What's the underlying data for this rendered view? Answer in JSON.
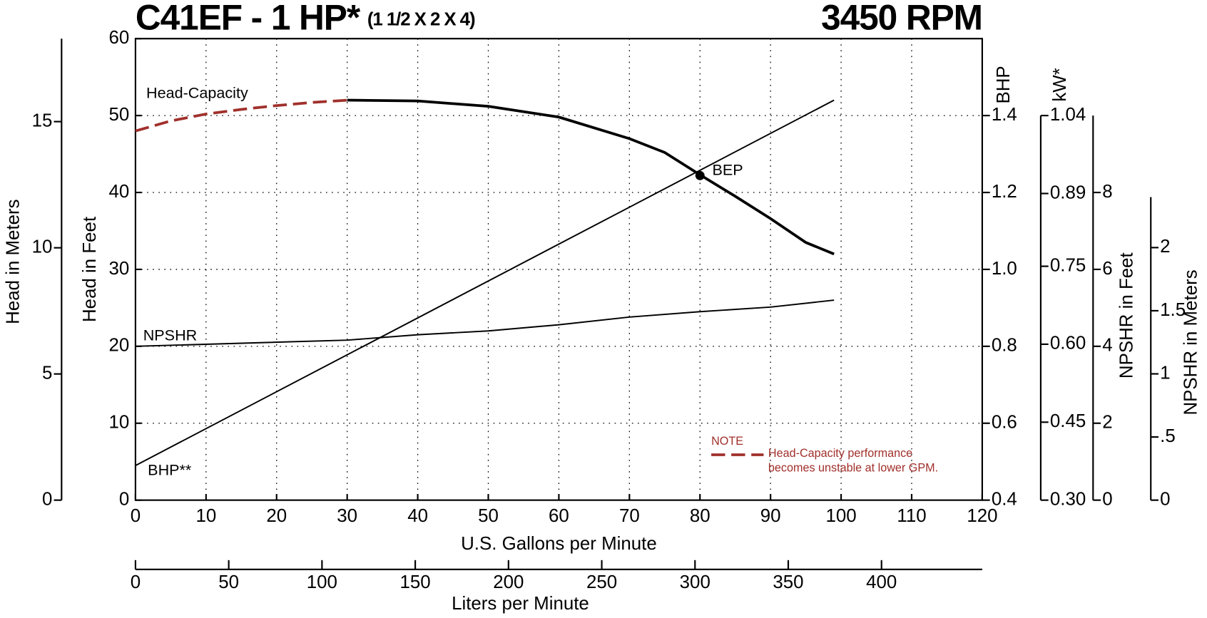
{
  "chart_data": {
    "type": "line",
    "title": "C41EF - 1 HP*",
    "subtitle": "(1 1/2 X 2 X 4)",
    "speed": "3450 RPM",
    "x_label": "U.S. Gallons per Minute",
    "y_label": "Head in Feet",
    "xlim": [
      0,
      120
    ],
    "xticks": [
      0,
      10,
      20,
      30,
      40,
      50,
      60,
      70,
      80,
      90,
      100,
      110,
      120
    ],
    "ylim": [
      0,
      60
    ],
    "yticks": [
      0,
      10,
      20,
      30,
      40,
      50,
      60
    ],
    "grid": true,
    "x2_label": "Liters per Minute",
    "x2lim": [
      0,
      454
    ],
    "x2ticks": [
      0,
      50,
      100,
      150,
      200,
      250,
      300,
      350,
      400
    ],
    "axes": {
      "meters": {
        "label": "Head in Meters",
        "lim": [
          0,
          18.288
        ],
        "ticks": [
          0,
          5,
          10,
          15
        ]
      },
      "bhp": {
        "label": "BHP",
        "lim": [
          0.4,
          1.6
        ],
        "ticks": [
          0.4,
          0.6,
          0.8,
          {
            "value": 1.0,
            "label": "1.0"
          },
          1.2,
          1.4
        ]
      },
      "kw": {
        "label": "kW*",
        "lim": [
          0.3,
          1.04
        ],
        "ticks": [
          {
            "value": 0.3,
            "label": "0.30"
          },
          0.45,
          {
            "value": 0.6,
            "label": "0.60"
          },
          0.75,
          0.89,
          1.04
        ]
      },
      "npshr_ft": {
        "label": "NPSHR in Feet",
        "lim": [
          0,
          10
        ],
        "ticks": [
          0,
          2,
          4,
          6,
          8
        ]
      },
      "npshr_m": {
        "label": "NPSHR in Meters",
        "lim": [
          0,
          2.4
        ],
        "ticks": [
          0,
          {
            "value": 0.5,
            "label": ".5"
          },
          1,
          1.5,
          2
        ]
      }
    },
    "series": [
      {
        "name": "Head-Capacity",
        "color": "#000000",
        "axis": "y",
        "x": [
          30,
          40,
          50,
          60,
          70,
          75,
          80,
          85,
          90,
          95,
          99
        ],
        "values": [
          52,
          51.9,
          51.2,
          49.8,
          47,
          45.2,
          42.3,
          39.5,
          36.6,
          33.5,
          32
        ]
      },
      {
        "color": "#a0302b",
        "dash": true,
        "axis": "y",
        "x": [
          0,
          5,
          10,
          15,
          20,
          25,
          30
        ],
        "values": [
          48,
          49.3,
          50.2,
          50.8,
          51.3,
          51.7,
          52
        ]
      },
      {
        "name": "NPSHR",
        "color": "#000000",
        "axis": "npshr_ft",
        "x": [
          0,
          30,
          40,
          50,
          60,
          70,
          80,
          90,
          99
        ],
        "values": [
          4.0,
          4.16,
          4.3,
          4.4,
          4.56,
          4.76,
          4.9,
          5.02,
          5.2
        ]
      },
      {
        "name": "BHP**",
        "color": "#000000",
        "axis": "bhp",
        "x": [
          0,
          99
        ],
        "values": [
          0.49,
          1.44
        ]
      }
    ],
    "annotations": [
      {
        "text": "BEP",
        "x": 80,
        "y": 42.2
      }
    ],
    "note": {
      "title": "NOTE",
      "lines": [
        "Head-Capacity performance",
        "becomes unstable at lower GPM."
      ],
      "color": "#a0302b"
    }
  }
}
